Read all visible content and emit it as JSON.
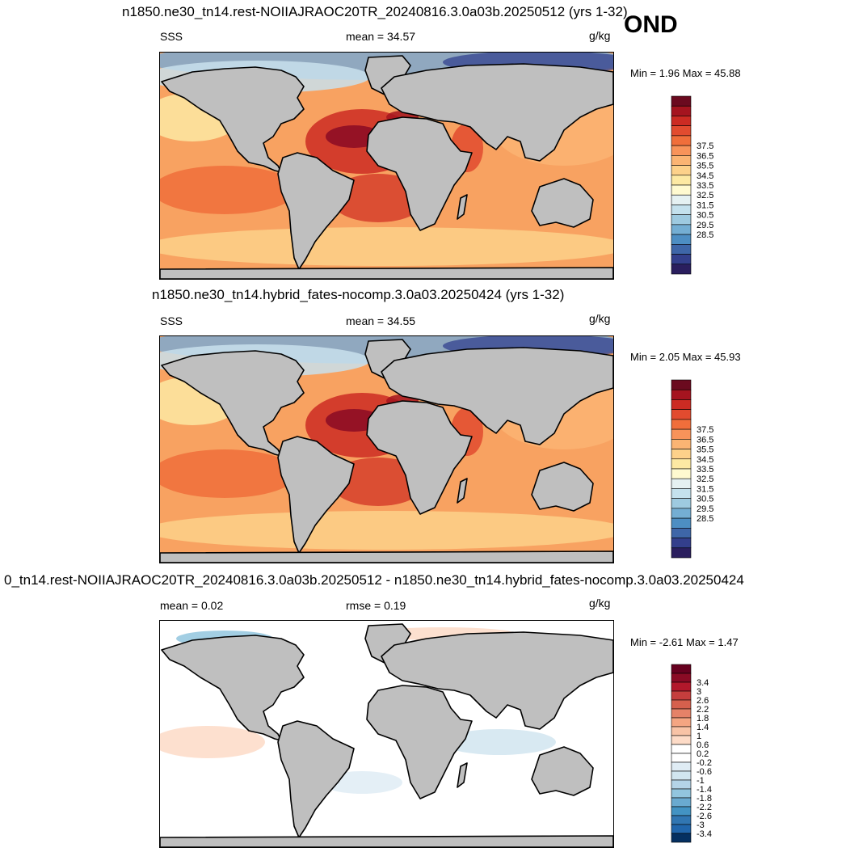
{
  "season": "OND",
  "panels": [
    {
      "title": "n1850.ne30_tn14.rest-NOIIAJRAOC20TR_20240816.3.0a03b.20250512 (yrs 1-32)",
      "left_label": "SSS",
      "center_label": "mean =  34.57",
      "units": "g/kg",
      "minmax": "Min =   1.96 Max =  45.88",
      "kind": "field"
    },
    {
      "title": "n1850.ne30_tn14.hybrid_fates-nocomp.3.0a03.20250424 (yrs 1-32)",
      "left_label": "SSS",
      "center_label": "mean =  34.55",
      "units": "g/kg",
      "minmax": "Min =   2.05 Max =  45.93",
      "kind": "field"
    },
    {
      "title": "0_tn14.rest-NOIIAJRAOC20TR_20240816.3.0a03b.20250512 - n1850.ne30_tn14.hybrid_fates-nocomp.3.0a03.20250424",
      "left_label": "mean =   0.02",
      "center_label": "rmse =   0.19",
      "units": "g/kg",
      "minmax": "Min =  -2.61 Max =   1.47",
      "kind": "diff"
    }
  ],
  "colorbars": {
    "field": {
      "labels": [
        "37.5",
        "36.5",
        "35.5",
        "34.5",
        "33.5",
        "32.5",
        "31.5",
        "30.5",
        "29.5",
        "28.5"
      ],
      "colors": [
        "#6b0a1f",
        "#a5141f",
        "#cc2b23",
        "#e24b2f",
        "#f06e3b",
        "#f8935a",
        "#fbb473",
        "#fdd18a",
        "#fde9a3",
        "#fffad0",
        "#e5f1f2",
        "#c4e1ed",
        "#9ecae0",
        "#74aed3",
        "#4d8ec3",
        "#3e66a8",
        "#333f8c",
        "#2a1e5e"
      ]
    },
    "diff": {
      "labels": [
        "3.4",
        "3",
        "2.6",
        "2.2",
        "1.8",
        "1.4",
        "1",
        "0.6",
        "0.2",
        "-0.2",
        "-0.6",
        "-1",
        "-1.4",
        "-1.8",
        "-2.2",
        "-2.6",
        "-3",
        "-3.4"
      ],
      "colors": [
        "#67001f",
        "#8a0b25",
        "#b2182b",
        "#c53e3d",
        "#d6604d",
        "#e58268",
        "#f4a582",
        "#f8c3a6",
        "#fddbc7",
        "#ffffff",
        "#ffffff",
        "#dfecf4",
        "#d1e5f0",
        "#b4d4e8",
        "#92c5de",
        "#6aaad0",
        "#4393c3",
        "#3176b2",
        "#2166ac",
        "#053061"
      ]
    },
    "land_color": "#bfbfbf"
  }
}
